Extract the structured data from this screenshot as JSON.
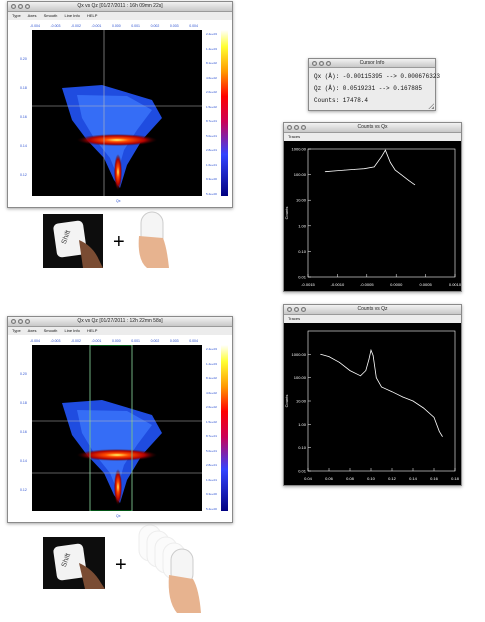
{
  "win1": {
    "title": "Qx vs Qz [01/27/2011 : 16h 09mn 22s]",
    "menu": [
      "Type",
      "Axes",
      "Smooth",
      "Line Info",
      "HELP"
    ],
    "x_ticks": [
      "-0.004",
      "-0.003",
      "-0.002",
      "-0.001",
      "0.000",
      "0.001",
      "0.002",
      "0.003",
      "0.004"
    ],
    "y_ticks": [
      "0.20",
      "0.18",
      "0.16",
      "0.14",
      "0.12"
    ],
    "xlabel": "Qx",
    "ylabel": "Qz",
    "cb_ticks": [
      "2.4e+03",
      "1.4e+03",
      "8.1e+02",
      "4.6e+02",
      "2.6e+02",
      "1.5e+02",
      "8.7e+01",
      "5.0e+01",
      "2.8e+01",
      "1.6e+01",
      "9.3e+00",
      "5.4e+00"
    ]
  },
  "win2": {
    "title": "Qx vs Qz [01/27/2011 : 12h 22mn 58s]",
    "menu": [
      "Type",
      "Axes",
      "Smooth",
      "Line Info",
      "HELP"
    ],
    "x_ticks": [
      "-0.004",
      "-0.003",
      "-0.002",
      "-0.001",
      "0.000",
      "0.001",
      "0.002",
      "0.003",
      "0.004"
    ],
    "y_ticks": [
      "0.20",
      "0.18",
      "0.16",
      "0.14",
      "0.12"
    ],
    "xlabel": "Qx",
    "ylabel": "Qz",
    "cb_ticks": [
      "2.4e+03",
      "1.4e+03",
      "8.1e+02",
      "4.6e+02",
      "2.6e+02",
      "1.5e+02",
      "8.7e+01",
      "5.0e+01",
      "2.8e+01",
      "1.6e+01",
      "9.3e+00",
      "5.4e+00"
    ]
  },
  "cursor_info": {
    "title": "Cursor Info",
    "qx": "Qx (Å):  -0.00115395 --> 0.000676323",
    "qz": "Qz (Å):  0.0519231 --> 0.167885",
    "counts": "Counts:  17478.4"
  },
  "counts_qx": {
    "title": "Counts vs Qx",
    "menu": "Traces",
    "ylabel": "Counts"
  },
  "counts_qz": {
    "title": "Counts vs Qz",
    "menu": "Traces",
    "ylabel": "Counts"
  },
  "chart_data": [
    {
      "type": "line",
      "title": "Counts vs Qx",
      "xlabel": "",
      "ylabel": "Counts",
      "xlim": [
        -0.0015,
        0.0015
      ],
      "ylim": [
        0.01,
        1000
      ],
      "yscale": "log",
      "x_ticks": [
        "-0.0015",
        "-0.0010",
        "-0.0005",
        "0.0000",
        "0.0005",
        "0.0010"
      ],
      "y_ticks": [
        "1000.00",
        "100.00",
        "10.00",
        "1.00",
        "0.10",
        "0.01"
      ],
      "x": [
        -0.00115,
        -0.00095,
        -0.00075,
        -0.00055,
        -0.00035,
        -0.00015,
        0.0,
        8e-05,
        0.00018,
        0.00028,
        0.0004,
        0.00055,
        0.00068
      ],
      "values": [
        130,
        140,
        150,
        160,
        170,
        200,
        500,
        900,
        300,
        150,
        100,
        60,
        40
      ]
    },
    {
      "type": "line",
      "title": "Counts vs Qz",
      "xlabel": "",
      "ylabel": "Counts",
      "xlim": [
        0.04,
        0.18
      ],
      "ylim": [
        0.01,
        10000
      ],
      "yscale": "log",
      "x_ticks": [
        "0.04",
        "0.06",
        "0.08",
        "0.10",
        "0.12",
        "0.14",
        "0.16",
        "0.18"
      ],
      "y_ticks": [
        "1000.00",
        "100.00",
        "10.00",
        "1.00",
        "0.10",
        "0.01"
      ],
      "x": [
        0.052,
        0.06,
        0.07,
        0.08,
        0.09,
        0.095,
        0.098,
        0.1,
        0.102,
        0.105,
        0.11,
        0.12,
        0.13,
        0.14,
        0.15,
        0.16,
        0.165,
        0.168
      ],
      "values": [
        1000,
        800,
        450,
        200,
        120,
        200,
        600,
        1500,
        900,
        100,
        40,
        25,
        15,
        10,
        5,
        2,
        0.5,
        0.3
      ]
    }
  ]
}
